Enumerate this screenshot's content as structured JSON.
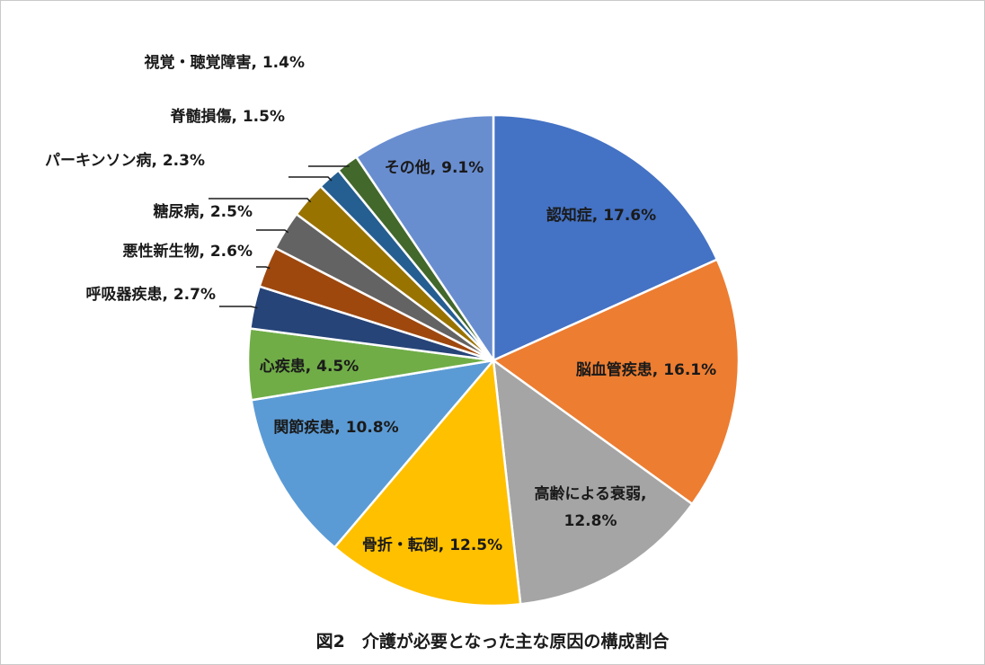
{
  "chart_data": {
    "type": "pie",
    "title": "図2　介護が必要となった主な原因の構成割合",
    "slices": [
      {
        "label": "認知症",
        "value": 17.6,
        "value_text": "17.6%",
        "color": "#4472c4"
      },
      {
        "label": "脳血管疾患",
        "value": 16.1,
        "value_text": "16.1%",
        "color": "#ed7d31"
      },
      {
        "label": "高齢による衰弱",
        "value": 12.8,
        "value_text": "12.8%",
        "color": "#a5a5a5"
      },
      {
        "label": "骨折・転倒",
        "value": 12.5,
        "value_text": "12.5%",
        "color": "#ffc000"
      },
      {
        "label": "関節疾患",
        "value": 10.8,
        "value_text": "10.8%",
        "color": "#5b9bd5"
      },
      {
        "label": "心疾患",
        "value": 4.5,
        "value_text": "4.5%",
        "color": "#70ad47"
      },
      {
        "label": "呼吸器疾患",
        "value": 2.7,
        "value_text": "2.7%",
        "color": "#264478"
      },
      {
        "label": "悪性新生物",
        "value": 2.6,
        "value_text": "2.6%",
        "color": "#9e480e"
      },
      {
        "label": "糖尿病",
        "value": 2.5,
        "value_text": "2.5%",
        "color": "#636363"
      },
      {
        "label": "パーキンソン病",
        "value": 2.3,
        "value_text": "2.3%",
        "color": "#997300"
      },
      {
        "label": "脊髄損傷",
        "value": 1.5,
        "value_text": "1.5%",
        "color": "#255e91"
      },
      {
        "label": "視覚・聴覚障害",
        "value": 1.4,
        "value_text": "1.4%",
        "color": "#43682b"
      },
      {
        "label": "その他",
        "value": 9.1,
        "value_text": "9.1%",
        "color": "#698ed0"
      }
    ]
  }
}
